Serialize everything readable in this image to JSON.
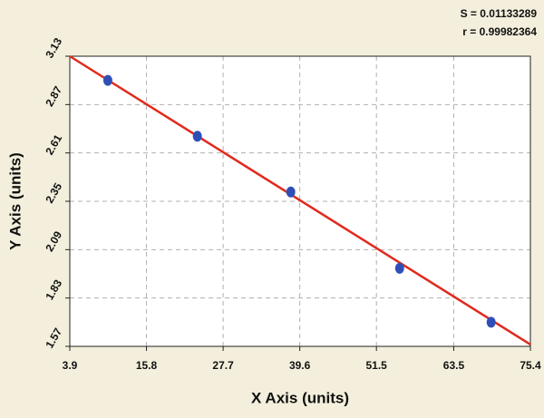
{
  "chart_data": {
    "type": "scatter",
    "x_label": "X Axis (units)",
    "y_label": "Y Axis (units)",
    "annotations": [
      "S = 0.01133289",
      "r = 0.99982364"
    ],
    "series": [
      {
        "color": "#2f4fb8",
        "x": [
          9.8,
          23.7,
          38.2,
          55.1,
          69.3
        ],
        "values": [
          3.0,
          2.7,
          2.4,
          1.99,
          1.7
        ]
      }
    ],
    "fit_line": {
      "color": "#e02a1c",
      "x": [
        3.9,
        75.4
      ],
      "values": [
        3.13,
        1.58
      ]
    },
    "xlim": [
      3.9,
      75.4
    ],
    "xticks": [
      3.9,
      15.8,
      27.7,
      39.6,
      51.5,
      63.5,
      75.4
    ],
    "ylim": [
      1.57,
      3.13
    ],
    "yticks": [
      1.57,
      1.83,
      2.09,
      2.35,
      2.61,
      2.87,
      3.13
    ],
    "grid": true
  }
}
